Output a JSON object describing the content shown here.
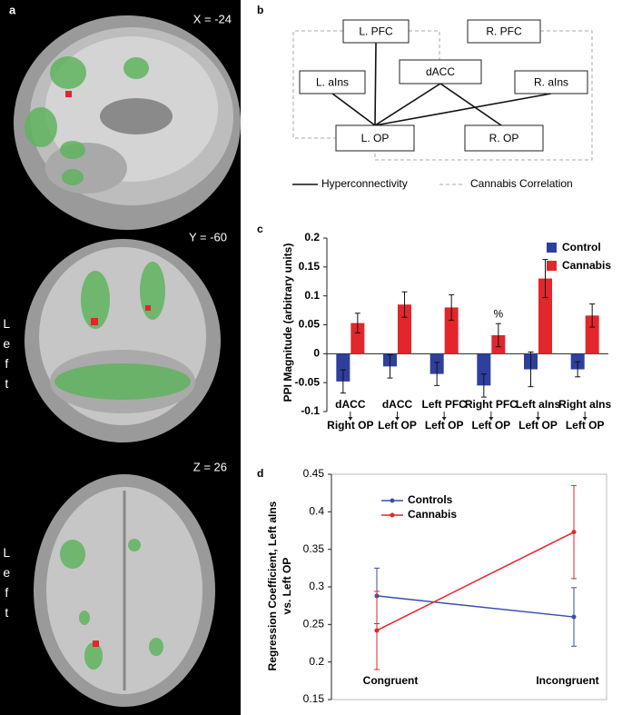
{
  "panel_labels": [
    "a",
    "b",
    "c",
    "d"
  ],
  "brain_images": [
    {
      "label": "X = -24"
    },
    {
      "label": "Y = -60",
      "side": "Left"
    },
    {
      "label": "Z = 26",
      "side": "Left"
    }
  ],
  "diagram": {
    "nodes": [
      "L. PFC",
      "R. PFC",
      "dACC",
      "L. aIns",
      "R. aIns",
      "L. OP",
      "R. OP"
    ],
    "legend": [
      "Hyperconnectivity",
      "Cannabis Correlation"
    ]
  },
  "chart_data": [
    {
      "type": "bar",
      "y_label": "PPI Magnitude (arbitrary units)",
      "categories": [
        [
          "dACC",
          "Right OP"
        ],
        [
          "dACC",
          "Left OP"
        ],
        [
          "Left PFC",
          "Left OP"
        ],
        [
          "Right PFC",
          "Left OP"
        ],
        [
          "Left aIns",
          "Left OP"
        ],
        [
          "Right aIns",
          "Left OP"
        ]
      ],
      "series": [
        {
          "name": "Control",
          "color": "#2e3f9e",
          "values": [
            -0.048,
            -0.022,
            -0.035,
            -0.055,
            -0.027,
            -0.027
          ],
          "errors": [
            0.02,
            0.02,
            0.02,
            0.02,
            0.03,
            0.013
          ]
        },
        {
          "name": "Cannabis",
          "color": "#e2262b",
          "values": [
            0.053,
            0.085,
            0.08,
            0.032,
            0.13,
            0.066
          ],
          "errors": [
            0.017,
            0.022,
            0.022,
            0.02,
            0.033,
            0.02
          ]
        }
      ],
      "annotation": "%",
      "ylim": [
        -0.1,
        0.2
      ],
      "yticks": [
        -0.1,
        -0.05,
        0,
        0.05,
        0.1,
        0.15,
        0.2
      ],
      "legend": "upper right"
    },
    {
      "type": "line",
      "y_label": [
        "Regression Coefficient, Left aIns",
        "vs. Left OP"
      ],
      "categories": [
        "Congruent",
        "Incongruent"
      ],
      "series": [
        {
          "name": "Controls",
          "color": "#3a4ea8",
          "values": [
            0.288,
            0.26
          ],
          "errors": [
            0.037,
            0.039
          ]
        },
        {
          "name": "Cannabis",
          "color": "#e2262b",
          "values": [
            0.242,
            0.373
          ],
          "errors": [
            0.052,
            0.062
          ]
        }
      ],
      "ylim": [
        0.15,
        0.45
      ],
      "yticks": [
        0.15,
        0.2,
        0.25,
        0.3,
        0.35,
        0.4,
        0.45
      ],
      "legend": "upper left"
    }
  ]
}
